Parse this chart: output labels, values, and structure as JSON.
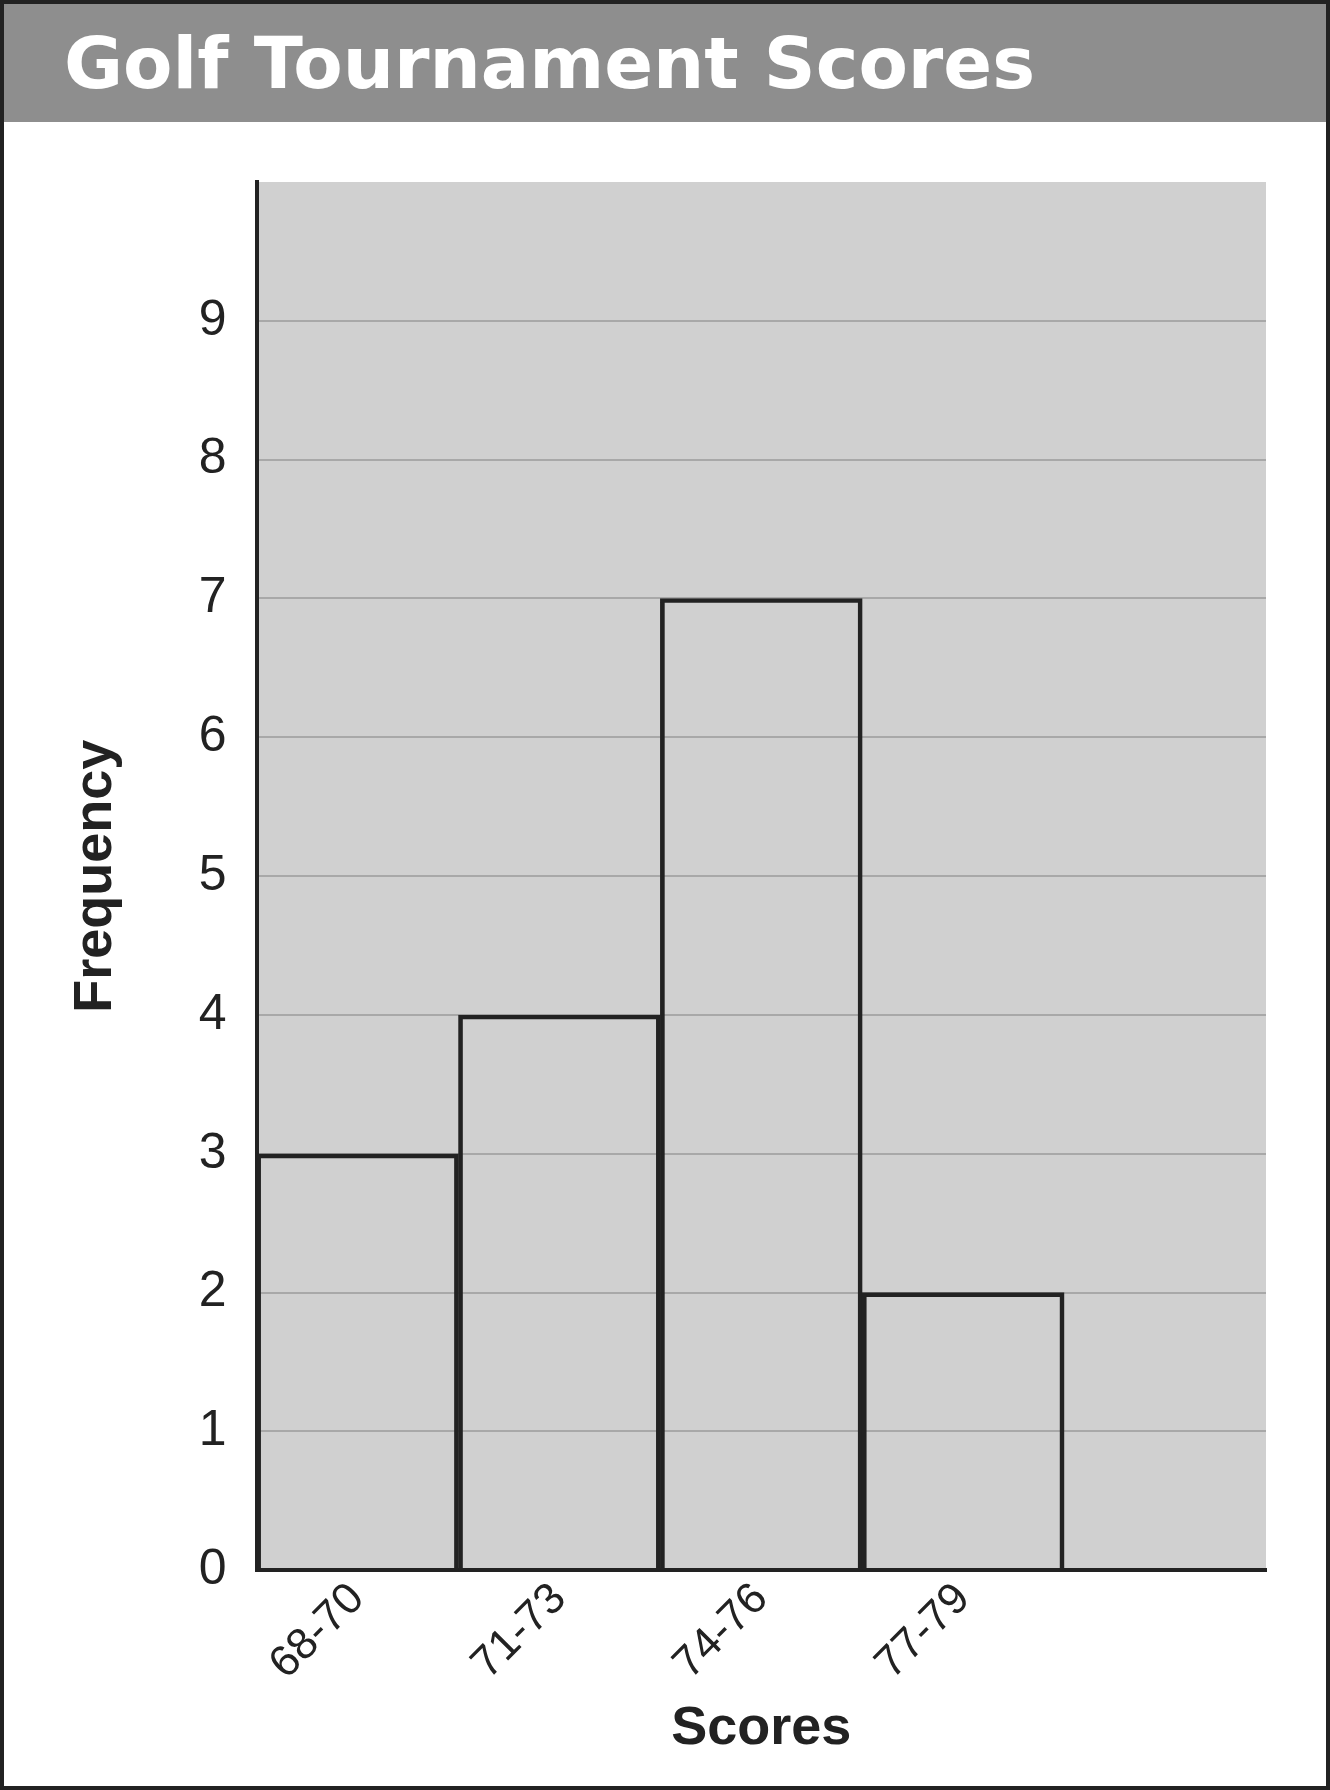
{
  "chart_data": {
    "type": "bar",
    "title": "Golf Tournament Scores",
    "xlabel": "Scores",
    "ylabel": "Frequency",
    "categories": [
      "68-70",
      "71-73",
      "74-76",
      "77-79",
      null
    ],
    "values": [
      3,
      4,
      7,
      2,
      null
    ],
    "color": "#222222",
    "ylim": [
      0,
      10
    ],
    "yticks": [
      0,
      1,
      2,
      3,
      4,
      5,
      6,
      7,
      8,
      9
    ],
    "grid": "y",
    "legend": false
  }
}
